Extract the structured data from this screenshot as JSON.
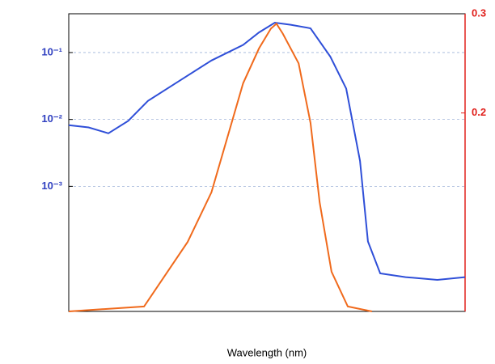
{
  "chart_data": {
    "type": "line",
    "xlabel": "Wavelength (nm)",
    "xlim": [
      0,
      100
    ],
    "ylim": [
      1.35e-05,
      0.38
    ],
    "log_y": true,
    "yticks": [
      {
        "value": 0.1,
        "label": "10⁻¹"
      },
      {
        "value": 0.01,
        "label": "10⁻²"
      },
      {
        "value": 0.001,
        "label": "10⁻³"
      }
    ],
    "y2lim": [
      0,
      0.3
    ],
    "y2ticks": [
      0.2,
      0.3
    ],
    "y2color": "#e0201c",
    "grid": true,
    "series": [
      {
        "name": null,
        "color": "#2f4fd8",
        "x": [
          0,
          5,
          10,
          15,
          20,
          28,
          36,
          44,
          48,
          52,
          56,
          61,
          66,
          70,
          73.5,
          75.5,
          78.6,
          85,
          93,
          100
        ],
        "values": [
          0.0082,
          0.0076,
          0.0062,
          0.0095,
          0.019,
          0.038,
          0.076,
          0.13,
          0.2,
          0.28,
          0.26,
          0.23,
          0.087,
          0.029,
          0.0024,
          0.00015,
          5e-05,
          4.4e-05,
          4e-05,
          4.4e-05
        ]
      },
      {
        "name": null,
        "color": "#f06a1c",
        "axis": "y2",
        "x": [
          0,
          19,
          30,
          36,
          44,
          48,
          51,
          52.4,
          54,
          58,
          61,
          63.3,
          66.3,
          70.4,
          76.5
        ],
        "values": [
          0,
          0.005,
          0.07,
          0.12,
          0.23,
          0.265,
          0.285,
          0.29,
          0.28,
          0.25,
          0.19,
          0.11,
          0.04,
          0.005,
          0
        ]
      }
    ]
  }
}
